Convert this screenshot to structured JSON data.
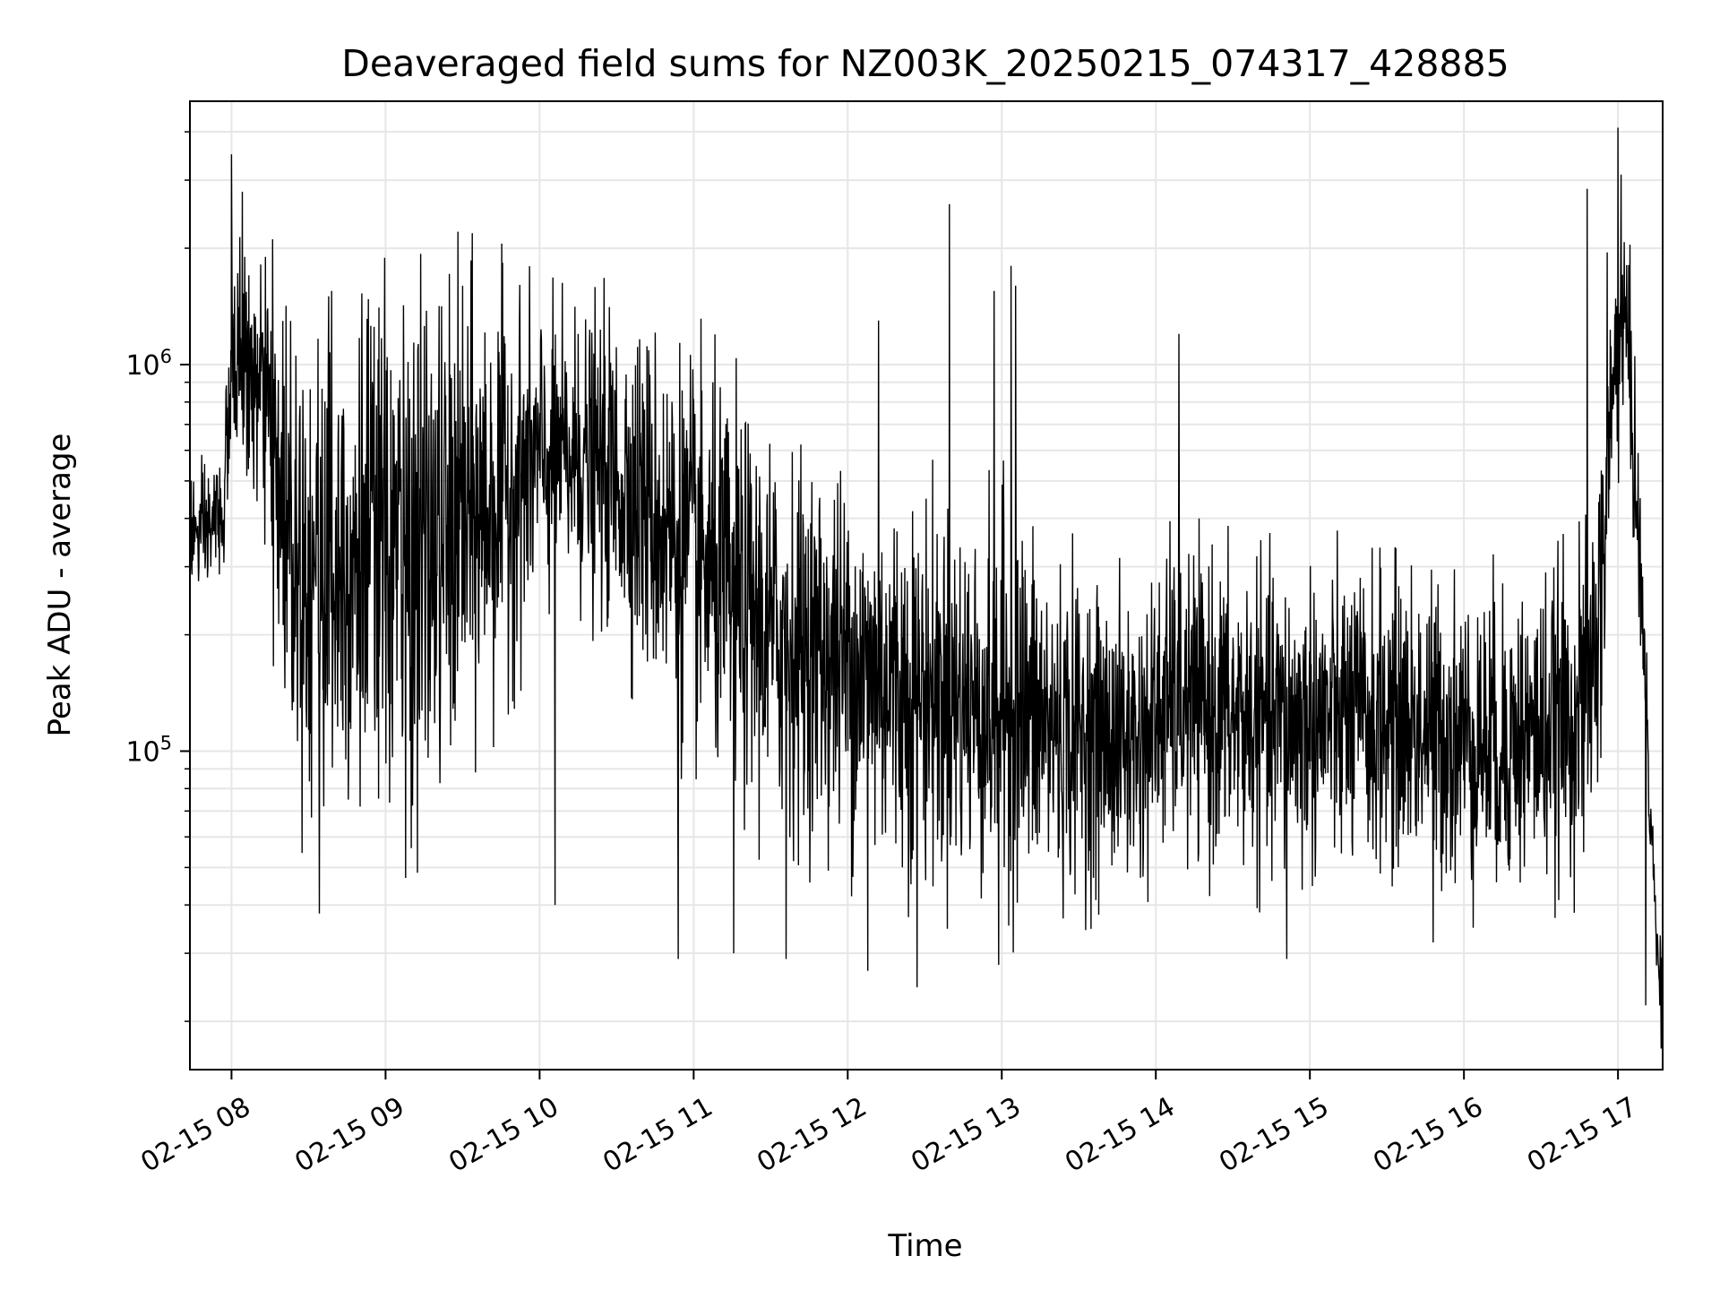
{
  "chart_data": {
    "type": "line",
    "title": "Deaveraged field sums for NZ003K_20250215_074317_428885",
    "xlabel": "Time",
    "ylabel": "Peak ADU - average",
    "yscale": "log",
    "x_unit": "hours",
    "xlim": [
      7.73,
      17.29
    ],
    "ylim": [
      15000,
      4800000
    ],
    "grid": true,
    "line_color": "#000000",
    "x_ticks": [
      {
        "value": 8,
        "label": "02-15 08"
      },
      {
        "value": 9,
        "label": "02-15 09"
      },
      {
        "value": 10,
        "label": "02-15 10"
      },
      {
        "value": 11,
        "label": "02-15 11"
      },
      {
        "value": 12,
        "label": "02-15 12"
      },
      {
        "value": 13,
        "label": "02-15 13"
      },
      {
        "value": 14,
        "label": "02-15 14"
      },
      {
        "value": 15,
        "label": "02-15 15"
      },
      {
        "value": 16,
        "label": "02-15 16"
      },
      {
        "value": 17,
        "label": "02-15 17"
      }
    ],
    "y_ticks": [
      {
        "value": 100000,
        "base": "10",
        "exp": "5"
      },
      {
        "value": 1000000,
        "base": "10",
        "exp": "6"
      }
    ],
    "series": [
      {
        "name": "",
        "envelope_x": [
          7.73,
          7.8,
          7.95,
          8.0,
          8.05,
          8.1,
          8.2,
          8.3,
          8.4,
          8.5,
          8.6,
          8.8,
          9.0,
          9.3,
          9.5,
          9.7,
          9.9,
          10.0,
          10.2,
          10.4,
          10.6,
          10.8,
          11.0,
          11.2,
          11.5,
          11.8,
          12.0,
          12.3,
          12.6,
          12.9,
          13.0,
          13.1,
          13.3,
          13.6,
          13.9,
          14.1,
          14.4,
          14.7,
          15.0,
          15.3,
          15.6,
          15.9,
          16.2,
          16.5,
          16.8,
          16.9,
          17.0,
          17.05,
          17.1,
          17.15,
          17.2,
          17.25,
          17.29
        ],
        "envelope_center": [
          380000,
          350000,
          420000,
          900000,
          1100000,
          950000,
          800000,
          500000,
          380000,
          300000,
          330000,
          330000,
          320000,
          330000,
          380000,
          450000,
          520000,
          560000,
          560000,
          540000,
          480000,
          380000,
          320000,
          260000,
          200000,
          180000,
          170000,
          150000,
          140000,
          130000,
          135000,
          130000,
          115000,
          108000,
          105000,
          135000,
          125000,
          118000,
          120000,
          120000,
          118000,
          112000,
          105000,
          112000,
          130000,
          250000,
          1100000,
          1300000,
          600000,
          250000,
          80000,
          30000,
          28000
        ],
        "envelope_spread": [
          0.18,
          0.2,
          0.2,
          0.28,
          0.3,
          0.3,
          0.4,
          0.55,
          0.68,
          0.75,
          0.78,
          0.78,
          0.78,
          0.75,
          0.7,
          0.62,
          0.5,
          0.45,
          0.42,
          0.45,
          0.5,
          0.55,
          0.58,
          0.58,
          0.56,
          0.55,
          0.55,
          0.56,
          0.55,
          0.55,
          0.6,
          0.58,
          0.5,
          0.45,
          0.42,
          0.45,
          0.45,
          0.45,
          0.45,
          0.45,
          0.45,
          0.45,
          0.45,
          0.45,
          0.48,
          0.5,
          0.35,
          0.35,
          0.3,
          0.25,
          0.15,
          0.12,
          0.12
        ],
        "peaks": [
          {
            "x": 8.0,
            "y": 3500000
          },
          {
            "x": 8.07,
            "y": 2800000
          },
          {
            "x": 8.22,
            "y": 1900000
          },
          {
            "x": 8.65,
            "y": 1550000
          },
          {
            "x": 9.5,
            "y": 1600000
          },
          {
            "x": 10.1,
            "y": 1550000
          },
          {
            "x": 10.25,
            "y": 1200000
          },
          {
            "x": 12.2,
            "y": 1300000
          },
          {
            "x": 12.66,
            "y": 2600000
          },
          {
            "x": 12.95,
            "y": 1550000
          },
          {
            "x": 13.06,
            "y": 1800000
          },
          {
            "x": 13.09,
            "y": 1600000
          },
          {
            "x": 14.15,
            "y": 1200000
          },
          {
            "x": 16.8,
            "y": 2850000
          },
          {
            "x": 17.0,
            "y": 4100000
          },
          {
            "x": 17.02,
            "y": 3100000
          },
          {
            "x": 16.93,
            "y": 1950000
          }
        ],
        "troughs": [
          {
            "x": 8.57,
            "y": 38000
          },
          {
            "x": 9.13,
            "y": 47000
          },
          {
            "x": 10.1,
            "y": 40000
          },
          {
            "x": 10.9,
            "y": 29000
          },
          {
            "x": 11.26,
            "y": 30000
          },
          {
            "x": 11.6,
            "y": 29000
          },
          {
            "x": 12.13,
            "y": 27000
          },
          {
            "x": 12.45,
            "y": 24500
          },
          {
            "x": 12.98,
            "y": 28000
          },
          {
            "x": 14.85,
            "y": 29000
          },
          {
            "x": 15.8,
            "y": 32000
          },
          {
            "x": 17.18,
            "y": 22000
          },
          {
            "x": 17.28,
            "y": 17000
          }
        ]
      }
    ]
  }
}
